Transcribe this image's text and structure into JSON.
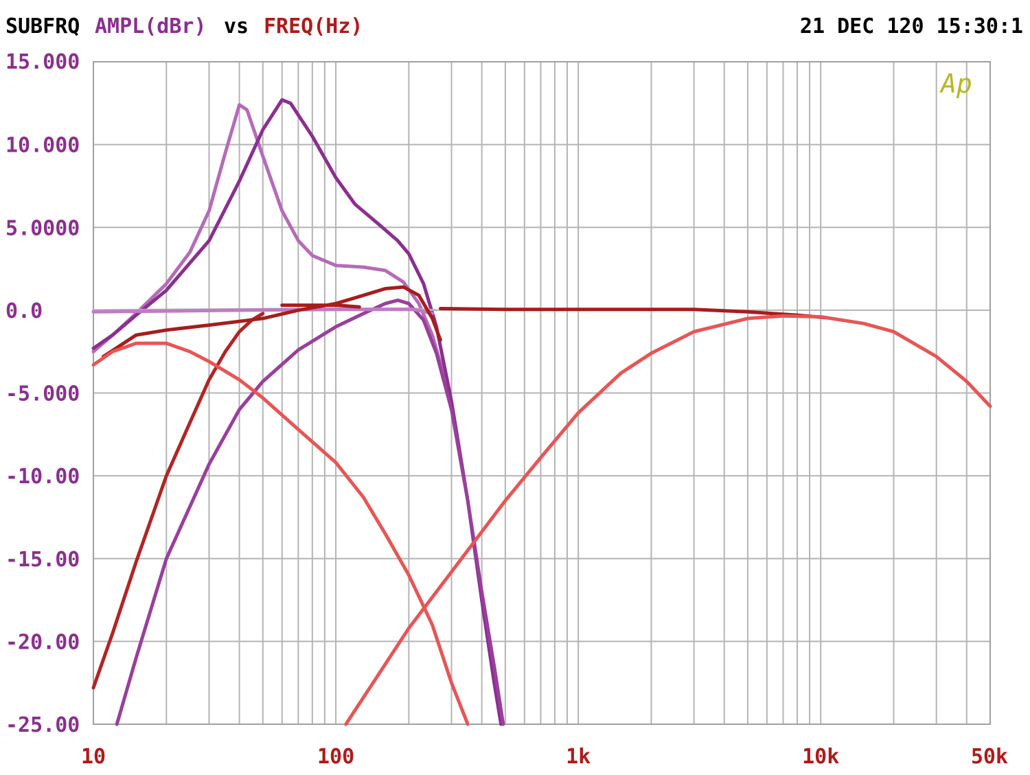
{
  "header": {
    "prefix": "SUBFRQ",
    "y_quantity": "AMPL(dBr)",
    "vs": "vs",
    "x_quantity": "FREQ(Hz)",
    "timestamp": "21 DEC 120 15:30:1"
  },
  "logo_text": "Ap",
  "colors": {
    "background": "#ffffff",
    "grid": "#b4b4b4",
    "frame": "#a0a0a0",
    "header_text": "#000000",
    "y_label": "#8b2f8f",
    "x_label": "#b01a1a",
    "logo": "#b5b820"
  },
  "chart_data": {
    "type": "line",
    "x_scale": "log",
    "xlim": [
      10,
      50000
    ],
    "ylim": [
      -25,
      15
    ],
    "grid": true,
    "x_ticks": [
      {
        "value": 10,
        "label": "10"
      },
      {
        "value": 100,
        "label": "100"
      },
      {
        "value": 1000,
        "label": "1k"
      },
      {
        "value": 10000,
        "label": "10k"
      },
      {
        "value": 50000,
        "label": "50k"
      }
    ],
    "y_ticks": [
      {
        "value": 15,
        "label": "15.000"
      },
      {
        "value": 10,
        "label": "10.000"
      },
      {
        "value": 5,
        "label": "5.0000"
      },
      {
        "value": 0,
        "label": "0.0"
      },
      {
        "value": -5,
        "label": "-5.000"
      },
      {
        "value": -10,
        "label": "-10.00"
      },
      {
        "value": -15,
        "label": "-15.00"
      },
      {
        "value": -20,
        "label": "-20.00"
      },
      {
        "value": -25,
        "label": "-25.00"
      }
    ],
    "series": [
      {
        "color": "#b56bb8",
        "width": 5,
        "points": [
          [
            10,
            -2.5
          ],
          [
            12,
            -1.5
          ],
          [
            15,
            -0.2
          ],
          [
            20,
            1.6
          ],
          [
            25,
            3.5
          ],
          [
            30,
            6.0
          ],
          [
            35,
            9.5
          ],
          [
            40,
            12.4
          ],
          [
            43,
            12.1
          ],
          [
            50,
            9.3
          ],
          [
            60,
            6.0
          ],
          [
            70,
            4.2
          ],
          [
            80,
            3.3
          ],
          [
            100,
            2.7
          ],
          [
            130,
            2.6
          ],
          [
            160,
            2.4
          ],
          [
            190,
            1.7
          ],
          [
            220,
            0.4
          ],
          [
            250,
            -1.5
          ],
          [
            280,
            -4.0
          ]
        ]
      },
      {
        "color": "#8b2f8f",
        "width": 5,
        "points": [
          [
            10,
            -2.3
          ],
          [
            12,
            -1.5
          ],
          [
            15,
            -0.3
          ],
          [
            20,
            1.2
          ],
          [
            30,
            4.2
          ],
          [
            40,
            7.8
          ],
          [
            50,
            10.9
          ],
          [
            60,
            12.7
          ],
          [
            65,
            12.5
          ],
          [
            80,
            10.5
          ],
          [
            100,
            8.0
          ],
          [
            120,
            6.4
          ],
          [
            150,
            5.2
          ],
          [
            180,
            4.2
          ],
          [
            200,
            3.4
          ],
          [
            230,
            1.6
          ],
          [
            260,
            -1.0
          ],
          [
            300,
            -5.5
          ],
          [
            350,
            -11.5
          ],
          [
            400,
            -17.5
          ],
          [
            450,
            -22.5
          ],
          [
            480,
            -25.0
          ]
        ]
      },
      {
        "color": "#9a3e9c",
        "width": 5,
        "points": [
          [
            12.5,
            -25.0
          ],
          [
            15,
            -21.0
          ],
          [
            20,
            -15.0
          ],
          [
            30,
            -9.3
          ],
          [
            40,
            -6.0
          ],
          [
            50,
            -4.3
          ],
          [
            70,
            -2.4
          ],
          [
            100,
            -1.0
          ],
          [
            130,
            -0.2
          ],
          [
            160,
            0.4
          ],
          [
            180,
            0.6
          ],
          [
            200,
            0.4
          ],
          [
            230,
            -0.6
          ],
          [
            260,
            -2.6
          ],
          [
            300,
            -6.0
          ],
          [
            350,
            -11.5
          ],
          [
            400,
            -17.0
          ],
          [
            450,
            -21.5
          ],
          [
            490,
            -25.0
          ]
        ]
      },
      {
        "color": "#b5b3b5",
        "width": 3,
        "points": [
          [
            10,
            0.0
          ],
          [
            30,
            0.05
          ],
          [
            100,
            0.1
          ],
          [
            200,
            0.1
          ],
          [
            260,
            0.0
          ]
        ]
      },
      {
        "color": "#c17ac4",
        "width": 5,
        "points": [
          [
            10,
            -0.1
          ],
          [
            40,
            0.0
          ],
          [
            100,
            0.05
          ],
          [
            210,
            0.05
          ],
          [
            250,
            -0.2
          ]
        ]
      },
      {
        "color": "#b32424",
        "width": 5,
        "points": [
          [
            10,
            -22.8
          ],
          [
            12,
            -19.5
          ],
          [
            15,
            -15.2
          ],
          [
            20,
            -10.0
          ],
          [
            25,
            -6.8
          ],
          [
            30,
            -4.2
          ],
          [
            35,
            -2.5
          ],
          [
            40,
            -1.3
          ],
          [
            45,
            -0.6
          ],
          [
            50,
            -0.2
          ]
        ]
      },
      {
        "color": "#a81c1c",
        "width": 5,
        "points": [
          [
            11,
            -2.8
          ],
          [
            15,
            -1.5
          ],
          [
            20,
            -1.2
          ],
          [
            30,
            -0.9
          ],
          [
            50,
            -0.5
          ],
          [
            70,
            0.0
          ],
          [
            100,
            0.4
          ],
          [
            130,
            0.9
          ],
          [
            160,
            1.3
          ],
          [
            190,
            1.4
          ],
          [
            220,
            0.9
          ],
          [
            250,
            -0.5
          ],
          [
            270,
            -1.8
          ]
        ]
      },
      {
        "color": "#a81c1c",
        "width": 5,
        "points": [
          [
            60,
            0.3
          ],
          [
            100,
            0.3
          ],
          [
            125,
            0.2
          ]
        ]
      },
      {
        "color": "#a81c1c",
        "width": 5,
        "points": [
          [
            270,
            0.1
          ],
          [
            500,
            0.05
          ],
          [
            1000,
            0.05
          ],
          [
            3000,
            0.05
          ],
          [
            5000,
            -0.1
          ],
          [
            8000,
            -0.3
          ],
          [
            10500,
            -0.45
          ]
        ]
      },
      {
        "color": "#e85555",
        "width": 5,
        "points": [
          [
            10,
            -3.3
          ],
          [
            12,
            -2.5
          ],
          [
            15,
            -2.0
          ],
          [
            20,
            -2.0
          ],
          [
            25,
            -2.5
          ],
          [
            30,
            -3.1
          ],
          [
            40,
            -4.2
          ],
          [
            50,
            -5.3
          ],
          [
            70,
            -7.2
          ],
          [
            100,
            -9.2
          ],
          [
            130,
            -11.3
          ],
          [
            160,
            -13.5
          ],
          [
            200,
            -16.0
          ],
          [
            250,
            -19.0
          ],
          [
            300,
            -22.5
          ],
          [
            350,
            -25.0
          ]
        ]
      },
      {
        "color": "#e85555",
        "width": 5,
        "points": [
          [
            110,
            -25.0
          ],
          [
            150,
            -22.0
          ],
          [
            200,
            -19.2
          ],
          [
            300,
            -15.8
          ],
          [
            500,
            -11.5
          ],
          [
            700,
            -8.9
          ],
          [
            1000,
            -6.2
          ],
          [
            1500,
            -3.8
          ],
          [
            2000,
            -2.6
          ],
          [
            3000,
            -1.3
          ],
          [
            5000,
            -0.5
          ],
          [
            7000,
            -0.35
          ],
          [
            10000,
            -0.4
          ],
          [
            15000,
            -0.8
          ],
          [
            20000,
            -1.3
          ],
          [
            30000,
            -2.8
          ],
          [
            40000,
            -4.3
          ],
          [
            50000,
            -5.8
          ]
        ]
      }
    ]
  }
}
